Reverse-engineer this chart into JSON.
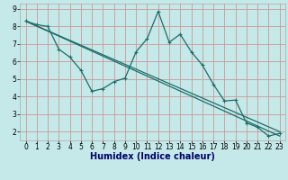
{
  "title": "",
  "xlabel": "Humidex (Indice chaleur)",
  "xlim": [
    -0.5,
    23.5
  ],
  "ylim": [
    1.5,
    9.3
  ],
  "xticks": [
    0,
    1,
    2,
    3,
    4,
    5,
    6,
    7,
    8,
    9,
    10,
    11,
    12,
    13,
    14,
    15,
    16,
    17,
    18,
    19,
    20,
    21,
    22,
    23
  ],
  "yticks": [
    2,
    3,
    4,
    5,
    6,
    7,
    8,
    9
  ],
  "background_color": "#c5e8e8",
  "grid_color": "#cc9999",
  "line_color": "#1a6e6a",
  "line1_x": [
    0,
    1,
    2,
    3,
    4,
    5,
    6,
    7,
    8,
    9,
    10,
    11,
    12,
    13,
    14,
    15,
    16,
    17,
    18,
    19,
    20,
    21,
    22,
    23
  ],
  "line1_y": [
    8.3,
    8.1,
    8.0,
    6.7,
    6.25,
    5.5,
    4.3,
    4.45,
    4.85,
    5.05,
    6.55,
    7.3,
    8.85,
    7.1,
    7.55,
    6.55,
    5.8,
    4.7,
    3.75,
    3.8,
    2.5,
    2.25,
    1.75,
    1.9
  ],
  "line2_x": [
    0,
    23
  ],
  "line2_y": [
    8.3,
    2.0
  ],
  "line3_x": [
    0,
    23
  ],
  "line3_y": [
    8.3,
    1.75
  ],
  "xlabel_fontsize": 7,
  "xlabel_color": "#000066",
  "tick_fontsize": 5.5
}
